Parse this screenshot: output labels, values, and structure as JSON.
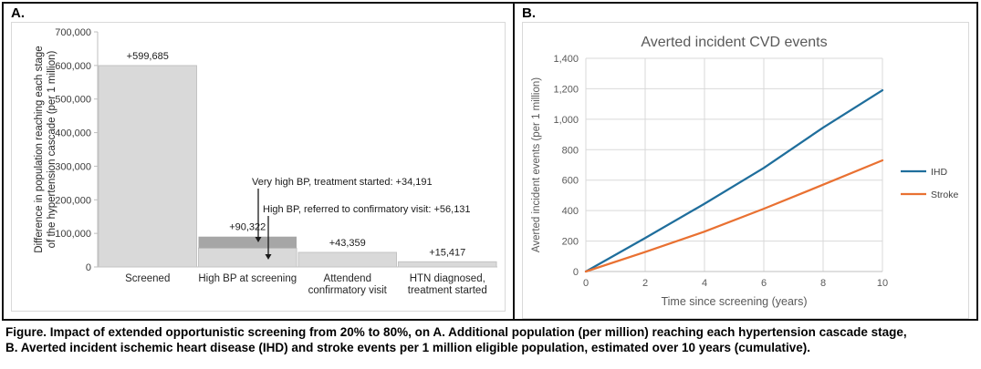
{
  "panel_a": {
    "label": "A."
  },
  "panel_b": {
    "label": "B."
  },
  "caption": "Figure. Impact of extended opportunistic screening from 20% to 80%, on A. Additional population (per million) reaching each hypertension cascade stage, B. Averted incident ischemic heart disease (IHD) and stroke events per 1 million eligible population, estimated over 10 years (cumulative).",
  "chart_data": [
    {
      "type": "bar",
      "panel": "A",
      "title": "",
      "ylabel": "Difference in population reaching each stage of the hypertension cascade (per 1 million)",
      "ylabel_lines": [
        "Difference in population reaching each stage",
        "of the hypertension cascade (per 1 million)"
      ],
      "ylim": [
        0,
        700000
      ],
      "yticks": [
        0,
        100000,
        200000,
        300000,
        400000,
        500000,
        600000,
        700000
      ],
      "categories": [
        "Screened",
        "High BP at screening",
        "Attendend confirmatory visit",
        "HTN diagnosed, treatment started"
      ],
      "category_lines": [
        [
          "Screened"
        ],
        [
          "High BP at screening"
        ],
        [
          "Attendend",
          "confirmatory visit"
        ],
        [
          "HTN diagnosed,",
          "treatment started"
        ]
      ],
      "values": [
        599685,
        90322,
        43359,
        15417
      ],
      "data_labels": [
        "+599,685",
        "+90,322",
        "+43,359",
        "+15,417"
      ],
      "bar_color": "#d9d9d9",
      "bar_border_color": "#c3c3c3",
      "stacked_bar": {
        "category_index": 1,
        "segments": [
          {
            "label": "High BP, referred to confirmatory visit",
            "value": 56131,
            "color": "#d9d9d9"
          },
          {
            "label": "Very high BP, treatment started",
            "value": 34191,
            "color": "#a6a6a6"
          }
        ]
      },
      "annotations": [
        {
          "text": "Very high BP, treatment started: +34,191",
          "target": "upper-segment"
        },
        {
          "text": "High BP, referred to confirmatory visit: +56,131",
          "target": "lower-segment"
        }
      ],
      "grid": false,
      "axis_color": "#bfbfbf",
      "text_color": "#262626"
    },
    {
      "type": "line",
      "panel": "B",
      "title": "Averted incident CVD events",
      "xlabel": "Time since screening (years)",
      "ylabel": "Averted incident events (per 1 million)",
      "xlim": [
        0,
        10
      ],
      "ylim": [
        0,
        1400
      ],
      "xticks": [
        0,
        2,
        4,
        6,
        8,
        10
      ],
      "yticks": [
        0,
        200,
        400,
        600,
        800,
        1000,
        1200,
        1400
      ],
      "x": [
        0,
        2,
        4,
        6,
        8,
        10
      ],
      "series": [
        {
          "name": "IHD",
          "color": "#1f6e9c",
          "values": [
            0,
            220,
            445,
            680,
            945,
            1190
          ]
        },
        {
          "name": "Stroke",
          "color": "#e97132",
          "values": [
            0,
            128,
            262,
            412,
            570,
            730
          ]
        }
      ],
      "grid": true,
      "grid_color": "#d9d9d9",
      "axis_color": "#bfbfbf",
      "legend_position": "right",
      "text_color": "#595959"
    }
  ]
}
